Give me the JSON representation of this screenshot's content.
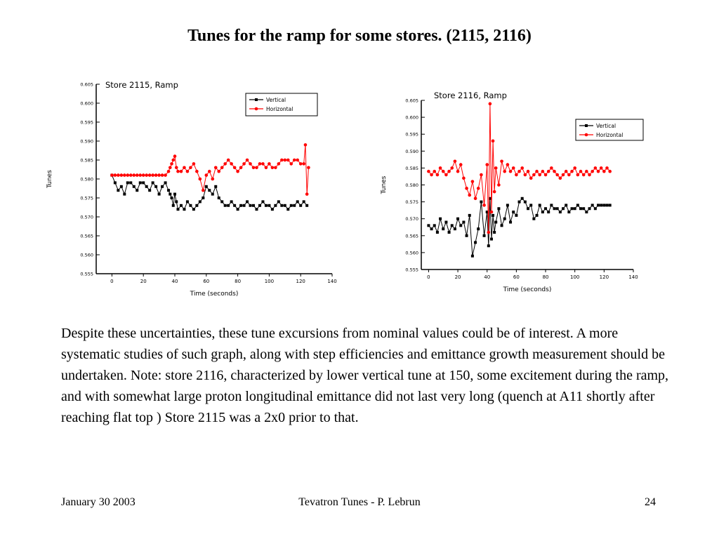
{
  "slide": {
    "title": "Tunes for the ramp for some  stores. (2115, 2116)",
    "body": "Despite these uncertainties, these tune excursions from nominal values could be of interest. A more systematic studies of such graph, along with step efficiencies and emittance growth measurement should be undertaken.   Note: store 2116, characterized by lower vertical tune at 150, some excitement during the ramp, and with somewhat large proton longitudinal emittance did not last very long (quench at A11 shortly after reaching flat top ) Store 2115 was a 2x0 prior to that.",
    "footer": {
      "date": "January 30  2003",
      "center": "Tevatron Tunes - P. Lebrun",
      "page": "24"
    }
  },
  "chart_data": [
    {
      "type": "line",
      "title": "Store 2115, Ramp",
      "xlabel": "Time (seconds)",
      "ylabel": "Tunes",
      "xlim": [
        -10,
        140
      ],
      "ylim": [
        0.555,
        0.605
      ],
      "xticks": [
        0,
        20,
        40,
        60,
        80,
        100,
        120,
        140
      ],
      "yticks": [
        0.555,
        0.56,
        0.565,
        0.57,
        0.575,
        0.58,
        0.585,
        0.59,
        0.595,
        0.6,
        0.605
      ],
      "legend_position": "top-right",
      "series": [
        {
          "name": "Vertical",
          "color": "#000000",
          "x": [
            0,
            2,
            4,
            6,
            8,
            10,
            12,
            14,
            16,
            18,
            20,
            22,
            24,
            26,
            28,
            30,
            32,
            34,
            36,
            37,
            38,
            39,
            40,
            41,
            42,
            44,
            46,
            48,
            50,
            52,
            54,
            56,
            58,
            60,
            62,
            64,
            66,
            68,
            70,
            72,
            74,
            76,
            78,
            80,
            82,
            84,
            86,
            88,
            90,
            92,
            94,
            96,
            98,
            100,
            102,
            104,
            106,
            108,
            110,
            112,
            114,
            116,
            118,
            120,
            122,
            124
          ],
          "y": [
            0.581,
            0.579,
            0.577,
            0.578,
            0.576,
            0.579,
            0.579,
            0.578,
            0.577,
            0.579,
            0.579,
            0.578,
            0.577,
            0.579,
            0.578,
            0.576,
            0.578,
            0.579,
            0.577,
            0.576,
            0.575,
            0.573,
            0.576,
            0.574,
            0.572,
            0.573,
            0.572,
            0.574,
            0.573,
            0.572,
            0.573,
            0.574,
            0.575,
            0.578,
            0.577,
            0.576,
            0.578,
            0.575,
            0.574,
            0.573,
            0.573,
            0.574,
            0.573,
            0.572,
            0.573,
            0.573,
            0.574,
            0.573,
            0.573,
            0.572,
            0.573,
            0.574,
            0.573,
            0.573,
            0.572,
            0.573,
            0.574,
            0.573,
            0.573,
            0.572,
            0.573,
            0.573,
            0.574,
            0.573,
            0.574,
            0.573
          ]
        },
        {
          "name": "Horizontal",
          "color": "#ff0000",
          "x": [
            0,
            2,
            4,
            6,
            8,
            10,
            12,
            14,
            16,
            18,
            20,
            22,
            24,
            26,
            28,
            30,
            32,
            34,
            36,
            37,
            38,
            39,
            40,
            41,
            42,
            44,
            46,
            48,
            50,
            52,
            54,
            56,
            58,
            60,
            62,
            64,
            66,
            68,
            70,
            72,
            74,
            76,
            78,
            80,
            82,
            84,
            86,
            88,
            90,
            92,
            94,
            96,
            98,
            100,
            102,
            104,
            106,
            108,
            110,
            112,
            114,
            116,
            118,
            120,
            122,
            123,
            124,
            125
          ],
          "y": [
            0.581,
            0.581,
            0.581,
            0.581,
            0.581,
            0.581,
            0.581,
            0.581,
            0.581,
            0.581,
            0.581,
            0.581,
            0.581,
            0.581,
            0.581,
            0.581,
            0.581,
            0.581,
            0.582,
            0.583,
            0.584,
            0.585,
            0.586,
            0.583,
            0.582,
            0.582,
            0.583,
            0.582,
            0.583,
            0.584,
            0.582,
            0.58,
            0.577,
            0.581,
            0.582,
            0.58,
            0.583,
            0.582,
            0.583,
            0.584,
            0.585,
            0.584,
            0.583,
            0.582,
            0.583,
            0.584,
            0.585,
            0.584,
            0.583,
            0.583,
            0.584,
            0.584,
            0.583,
            0.584,
            0.583,
            0.583,
            0.584,
            0.585,
            0.585,
            0.585,
            0.584,
            0.585,
            0.585,
            0.584,
            0.584,
            0.589,
            0.576,
            0.583
          ]
        }
      ]
    },
    {
      "type": "line",
      "title": "Store 2116, Ramp",
      "xlabel": "Time (seconds)",
      "ylabel": "Tunes",
      "xlim": [
        -5,
        140
      ],
      "ylim": [
        0.555,
        0.605
      ],
      "xticks": [
        0,
        20,
        40,
        60,
        80,
        100,
        120,
        140
      ],
      "yticks": [
        0.555,
        0.56,
        0.565,
        0.57,
        0.575,
        0.58,
        0.585,
        0.59,
        0.595,
        0.6,
        0.605
      ],
      "legend_position": "top-right",
      "series": [
        {
          "name": "Vertical",
          "color": "#000000",
          "x": [
            0,
            2,
            4,
            6,
            8,
            10,
            12,
            14,
            16,
            18,
            20,
            22,
            24,
            26,
            28,
            30,
            32,
            34,
            36,
            38,
            40,
            41,
            42,
            43,
            44,
            45,
            46,
            48,
            50,
            52,
            54,
            56,
            58,
            60,
            62,
            64,
            66,
            68,
            70,
            72,
            74,
            76,
            78,
            80,
            82,
            84,
            86,
            88,
            90,
            92,
            94,
            96,
            98,
            100,
            102,
            104,
            106,
            108,
            110,
            112,
            114,
            116,
            118,
            120,
            122,
            124
          ],
          "y": [
            0.568,
            0.567,
            0.568,
            0.566,
            0.57,
            0.567,
            0.569,
            0.566,
            0.568,
            0.567,
            0.57,
            0.568,
            0.569,
            0.565,
            0.571,
            0.559,
            0.563,
            0.567,
            0.575,
            0.565,
            0.572,
            0.562,
            0.576,
            0.564,
            0.571,
            0.566,
            0.569,
            0.573,
            0.568,
            0.57,
            0.574,
            0.569,
            0.572,
            0.571,
            0.575,
            0.576,
            0.575,
            0.573,
            0.574,
            0.57,
            0.571,
            0.574,
            0.572,
            0.573,
            0.572,
            0.574,
            0.573,
            0.573,
            0.572,
            0.573,
            0.574,
            0.572,
            0.573,
            0.573,
            0.574,
            0.573,
            0.573,
            0.572,
            0.573,
            0.574,
            0.573,
            0.574,
            0.574,
            0.574,
            0.574,
            0.574
          ]
        },
        {
          "name": "Horizontal",
          "color": "#ff0000",
          "x": [
            0,
            2,
            4,
            6,
            8,
            10,
            12,
            14,
            16,
            18,
            20,
            22,
            24,
            26,
            28,
            30,
            32,
            34,
            36,
            38,
            40,
            41,
            42,
            43,
            44,
            45,
            46,
            48,
            50,
            52,
            54,
            56,
            58,
            60,
            62,
            64,
            66,
            68,
            70,
            72,
            74,
            76,
            78,
            80,
            82,
            84,
            86,
            88,
            90,
            92,
            94,
            96,
            98,
            100,
            102,
            104,
            106,
            108,
            110,
            112,
            114,
            116,
            118,
            120,
            122,
            124
          ],
          "y": [
            0.584,
            0.583,
            0.584,
            0.583,
            0.585,
            0.584,
            0.583,
            0.584,
            0.585,
            0.587,
            0.584,
            0.586,
            0.582,
            0.579,
            0.577,
            0.581,
            0.576,
            0.579,
            0.583,
            0.574,
            0.586,
            0.566,
            0.604,
            0.572,
            0.593,
            0.578,
            0.585,
            0.58,
            0.587,
            0.584,
            0.586,
            0.584,
            0.585,
            0.583,
            0.584,
            0.585,
            0.583,
            0.584,
            0.582,
            0.583,
            0.584,
            0.583,
            0.584,
            0.583,
            0.584,
            0.585,
            0.584,
            0.583,
            0.582,
            0.583,
            0.584,
            0.583,
            0.584,
            0.585,
            0.583,
            0.584,
            0.583,
            0.584,
            0.583,
            0.584,
            0.585,
            0.584,
            0.585,
            0.584,
            0.585,
            0.584
          ]
        }
      ]
    }
  ]
}
